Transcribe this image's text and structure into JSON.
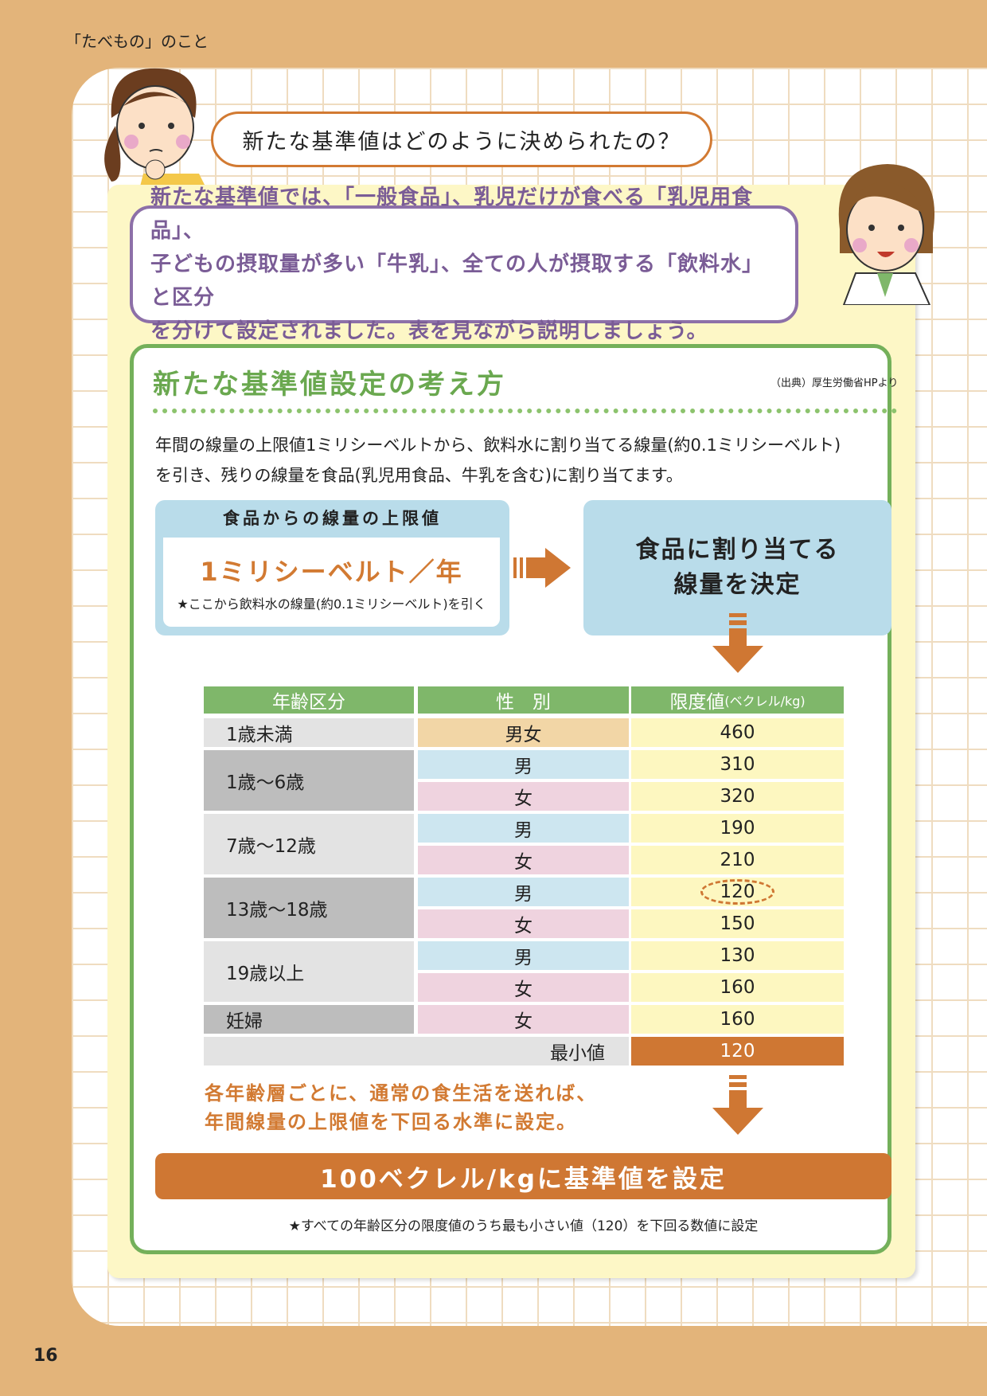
{
  "header": {
    "section_label": "「たべもの」のこと",
    "page_number": "16"
  },
  "question": "新たな基準値はどのように決められたの？",
  "answer": [
    "新たな基準値では、「一般食品」、乳児だけが食べる「乳児用食品」、",
    "子どもの摂取量が多い「牛乳」、全ての人が摂取する「飲料水」と区分",
    "を分けて設定されました。表を見ながら説明しましょう。"
  ],
  "panel": {
    "title": "新たな基準値設定の考え方",
    "source": "（出典）厚生労働省HPより",
    "intro": [
      "年間の線量の上限値1ミリシーベルトから、飲料水に割り当てる線量(約0.1ミリシーベルト)",
      "を引き、残りの線量を食品(乳児用食品、牛乳を含む)に割り当てます。"
    ],
    "limit_box": {
      "heading": "食品からの線量の上限値",
      "value": "1ミリシーベルト／年",
      "note": "★ここから飲料水の線量(約0.1ミリシーベルト)を引く"
    },
    "decide_box": [
      "食品に割り当てる",
      "線量を決定"
    ],
    "table": {
      "headers": [
        "年齢区分",
        "性　別",
        "限度値",
        "(ベクレル/kg)"
      ],
      "groups": [
        {
          "age": "1歳未満",
          "rows": [
            {
              "sex": "男女",
              "value": "460"
            }
          ]
        },
        {
          "age": "1歳～6歳",
          "rows": [
            {
              "sex": "男",
              "value": "310"
            },
            {
              "sex": "女",
              "value": "320"
            }
          ]
        },
        {
          "age": "7歳～12歳",
          "rows": [
            {
              "sex": "男",
              "value": "190"
            },
            {
              "sex": "女",
              "value": "210"
            }
          ]
        },
        {
          "age": "13歳～18歳",
          "rows": [
            {
              "sex": "男",
              "value": "120",
              "highlight": true
            },
            {
              "sex": "女",
              "value": "150"
            }
          ]
        },
        {
          "age": "19歳以上",
          "rows": [
            {
              "sex": "男",
              "value": "130"
            },
            {
              "sex": "女",
              "value": "160"
            }
          ]
        },
        {
          "age": "妊婦",
          "rows": [
            {
              "sex": "女",
              "value": "160"
            }
          ]
        }
      ],
      "min_label": "最小値",
      "min_value": "120"
    },
    "orange_text": [
      "各年齢層ごとに、通常の食生活を送れば、",
      "年間線量の上限値を下回る水準に設定。"
    ],
    "result": "100ベクレル/kgに基準値を設定",
    "footnote": "★すべての年齢区分の限度値のうち最も小さい値（120）を下回る数値に設定"
  },
  "colors": {
    "page_bg": "#e3b47a",
    "orange": "#cf7733",
    "green": "#74b05a",
    "purple": "#8d70a8",
    "blue_box": "#b9dcea",
    "male": "#cde6f0",
    "female": "#efd3df",
    "both": "#f2d6a6",
    "value": "#fdf7c0"
  }
}
